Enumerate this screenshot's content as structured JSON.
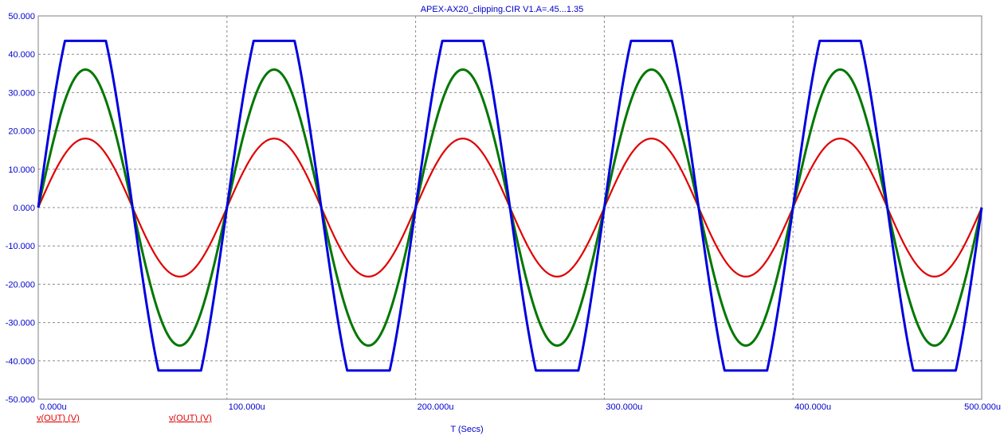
{
  "chart_data": {
    "type": "line",
    "title": "APEX-AX20_clipping.CIR V1.A=.45...1.35",
    "xlabel": "T (Secs)",
    "x_range": [
      0,
      500
    ],
    "y_range": [
      -50,
      50
    ],
    "x_ticks": [
      0,
      100,
      200,
      300,
      400,
      500
    ],
    "x_tick_labels": [
      "0.000u",
      "100.000u",
      "200.000u",
      "300.000u",
      "400.000u",
      "500.000u"
    ],
    "y_ticks": [
      50,
      40,
      30,
      20,
      10,
      0,
      -10,
      -20,
      -30,
      -40,
      -50
    ],
    "y_tick_labels": [
      "50.000",
      "40.000",
      "30.000",
      "20.000",
      "10.000",
      "0.000",
      "-10.000",
      "-20.000",
      "-30.000",
      "-40.000",
      "-50.000"
    ],
    "grid": true,
    "legend": [
      {
        "label": "v(OUT) (V)",
        "color": "#e00000"
      },
      {
        "label": "v(OUT) (V)",
        "color": "#e00000"
      }
    ],
    "series": [
      {
        "color": "#e00000",
        "waveform": "sine",
        "period_us": 100,
        "amplitude": 18,
        "clip_high": null,
        "clip_low": null
      },
      {
        "color": "#007700",
        "waveform": "sine",
        "period_us": 100,
        "amplitude": 36,
        "clip_high": null,
        "clip_low": null
      },
      {
        "color": "#0000e0",
        "waveform": "clipped-sine",
        "period_us": 100,
        "amplitude": 56,
        "clip_high": 43.5,
        "clip_low": -42.5
      }
    ]
  }
}
